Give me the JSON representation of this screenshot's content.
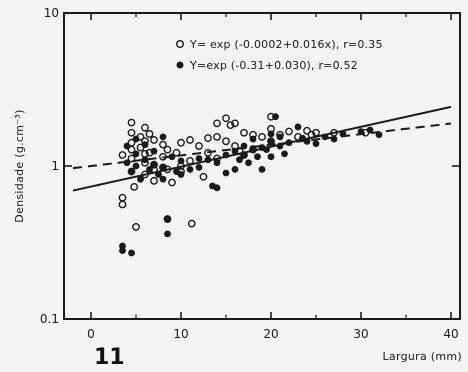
{
  "panel_label": "11",
  "chart_data": {
    "type": "scatter",
    "xlabel": "Largura (mm)",
    "ylabel": "Densidade (g.cm⁻³)",
    "xlim": [
      -3,
      41
    ],
    "ylim": [
      0.1,
      10
    ],
    "y_scale": "log",
    "x_ticks": [
      0,
      10,
      20,
      30,
      40
    ],
    "x_tick_labels": [
      "0",
      "10",
      "20",
      "30",
      "40"
    ],
    "y_ticks": [
      0.1,
      1,
      10
    ],
    "y_tick_labels": [
      "0.1",
      "1",
      "10"
    ],
    "legend_position": "top-right",
    "series": [
      {
        "marker": "open-circle",
        "legend": "Y= exp (-0.0002+0.016x), r=0.35",
        "fit": {
          "a": -0.0002,
          "b": 0.016,
          "style": "dashed"
        },
        "points": [
          [
            3.5,
            1.18
          ],
          [
            3.5,
            0.56
          ],
          [
            3.5,
            0.62
          ],
          [
            4.5,
            1.92
          ],
          [
            4.5,
            1.65
          ],
          [
            4.5,
            1.42
          ],
          [
            4.5,
            1.28
          ],
          [
            4.5,
            1.12
          ],
          [
            4.5,
            0.92
          ],
          [
            4.8,
            0.73
          ],
          [
            5,
            0.4
          ],
          [
            5.5,
            1.55
          ],
          [
            5.5,
            1.32
          ],
          [
            6,
            1.78
          ],
          [
            6,
            1.45
          ],
          [
            6,
            1.2
          ],
          [
            6,
            1.05
          ],
          [
            6,
            0.88
          ],
          [
            6.5,
            1.62
          ],
          [
            6.5,
            1.22
          ],
          [
            7,
            1.48
          ],
          [
            7,
            1.02
          ],
          [
            7,
            0.95
          ],
          [
            7,
            0.8
          ],
          [
            8,
            1.38
          ],
          [
            8,
            1.15
          ],
          [
            8,
            0.98
          ],
          [
            8.5,
            1.28
          ],
          [
            8.5,
            0.95
          ],
          [
            8.5,
            0.45
          ],
          [
            9,
            0.78
          ],
          [
            9.5,
            1.22
          ],
          [
            10,
            1.42
          ],
          [
            10,
            1.0
          ],
          [
            10,
            0.92
          ],
          [
            11,
            1.48
          ],
          [
            11,
            1.08
          ],
          [
            11.2,
            0.42
          ],
          [
            12,
            1.35
          ],
          [
            12.5,
            0.85
          ],
          [
            13,
            1.52
          ],
          [
            13,
            1.22
          ],
          [
            14,
            1.9
          ],
          [
            14,
            1.55
          ],
          [
            14,
            1.12
          ],
          [
            15,
            2.05
          ],
          [
            15,
            1.45
          ],
          [
            15.5,
            1.85
          ],
          [
            16,
            1.9
          ],
          [
            16,
            1.35
          ],
          [
            16.5,
            1.25
          ],
          [
            17,
            1.65
          ],
          [
            17,
            1.18
          ],
          [
            18,
            1.6
          ],
          [
            18,
            1.28
          ],
          [
            19,
            1.55
          ],
          [
            20,
            2.1
          ],
          [
            20,
            1.75
          ],
          [
            20,
            1.45
          ],
          [
            21,
            1.6
          ],
          [
            22,
            1.68
          ],
          [
            23,
            1.55
          ],
          [
            24,
            1.7
          ],
          [
            24.5,
            1.6
          ],
          [
            25,
            1.65
          ],
          [
            27,
            1.65
          ],
          [
            30.5,
            1.65
          ]
        ]
      },
      {
        "marker": "filled-circle",
        "legend": "Y=exp (-0.31+0.030), r=0.52",
        "fit": {
          "a": -0.31,
          "b": 0.03,
          "style": "solid"
        },
        "points": [
          [
            3.5,
            0.28
          ],
          [
            3.5,
            0.3
          ],
          [
            4.5,
            0.27
          ],
          [
            4,
            1.35
          ],
          [
            4,
            1.05
          ],
          [
            4.5,
            0.92
          ],
          [
            5,
            1.5
          ],
          [
            5,
            1.2
          ],
          [
            5,
            1.0
          ],
          [
            5.5,
            0.82
          ],
          [
            6,
            1.38
          ],
          [
            6,
            1.1
          ],
          [
            6.5,
            0.95
          ],
          [
            7,
            1.25
          ],
          [
            7,
            1.02
          ],
          [
            7.5,
            0.88
          ],
          [
            8,
            1.55
          ],
          [
            8,
            0.98
          ],
          [
            8,
            0.82
          ],
          [
            8.5,
            0.45
          ],
          [
            8.5,
            0.36
          ],
          [
            9,
            1.15
          ],
          [
            9.5,
            0.92
          ],
          [
            10,
            1.08
          ],
          [
            10,
            0.88
          ],
          [
            11,
            0.95
          ],
          [
            12,
            1.12
          ],
          [
            12,
            0.98
          ],
          [
            13,
            1.1
          ],
          [
            13.5,
            0.74
          ],
          [
            14,
            1.05
          ],
          [
            14,
            0.72
          ],
          [
            15,
            1.18
          ],
          [
            15,
            0.9
          ],
          [
            16,
            1.25
          ],
          [
            16,
            0.95
          ],
          [
            16.5,
            1.1
          ],
          [
            17,
            1.35
          ],
          [
            17,
            1.18
          ],
          [
            17.5,
            1.05
          ],
          [
            18,
            1.5
          ],
          [
            18,
            1.3
          ],
          [
            18.5,
            1.15
          ],
          [
            19,
            1.32
          ],
          [
            19,
            0.95
          ],
          [
            19.5,
            1.28
          ],
          [
            20,
            1.62
          ],
          [
            20,
            1.45
          ],
          [
            20,
            1.15
          ],
          [
            20.5,
            2.1
          ],
          [
            21,
            1.55
          ],
          [
            21,
            1.35
          ],
          [
            21.5,
            1.2
          ],
          [
            22,
            1.42
          ],
          [
            23,
            1.8
          ],
          [
            23.5,
            1.52
          ],
          [
            24,
            1.45
          ],
          [
            25,
            1.4
          ],
          [
            26,
            1.55
          ],
          [
            27,
            1.5
          ],
          [
            28,
            1.62
          ],
          [
            30,
            1.68
          ],
          [
            31,
            1.72
          ],
          [
            32,
            1.6
          ]
        ]
      }
    ]
  }
}
